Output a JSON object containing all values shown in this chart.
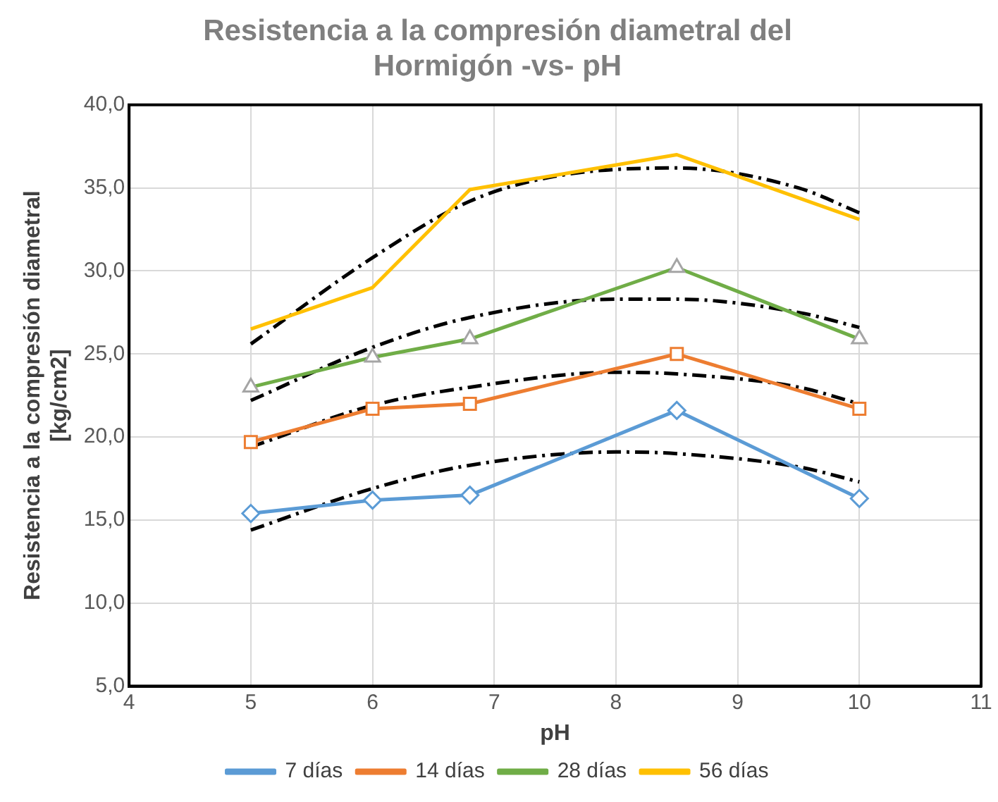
{
  "chart_data": {
    "type": "line",
    "title": "Resistencia a la compresión diametral del Hormigón -vs- pH",
    "xlabel": "pH",
    "ylabel": "Resistencia a la compresión diametral [kg/cm2]",
    "x": [
      5,
      6,
      6.8,
      8.5,
      10
    ],
    "series": [
      {
        "name": "7 días",
        "color": "#5b9bd5",
        "marker": "diamond",
        "values": [
          15.4,
          16.2,
          16.5,
          21.6,
          16.3
        ]
      },
      {
        "name": "14 días",
        "color": "#ed7d31",
        "marker": "square",
        "values": [
          19.7,
          21.7,
          22.0,
          25.0,
          21.7
        ]
      },
      {
        "name": "28 días",
        "color": "#70ad47",
        "marker": "triangle",
        "values": [
          23.0,
          24.8,
          25.9,
          30.2,
          25.9
        ]
      },
      {
        "name": "56 días",
        "color": "#ffc000",
        "marker": "none",
        "values": [
          26.5,
          29.0,
          34.9,
          37.0,
          33.1
        ]
      },
      {
        "type": "line",
        "color": "#000000",
        "line_style": "dashed",
        "marker": "none",
        "x": [
          5,
          6,
          6.8,
          8,
          8.5,
          9.5,
          10
        ],
        "values": [
          14.4,
          16.9,
          18.3,
          19.1,
          19.0,
          18.2,
          17.3
        ]
      },
      {
        "type": "line",
        "color": "#000000",
        "line_style": "dashed",
        "marker": "none",
        "x": [
          5,
          6,
          6.8,
          8,
          8.5,
          9.5,
          10
        ],
        "values": [
          19.4,
          21.9,
          23.0,
          23.9,
          23.8,
          23.0,
          22.0
        ]
      },
      {
        "type": "line",
        "color": "#000000",
        "line_style": "dashed",
        "marker": "none",
        "x": [
          5,
          6,
          6.8,
          8,
          8.5,
          9.5,
          10
        ],
        "values": [
          22.2,
          25.4,
          27.2,
          28.3,
          28.3,
          27.5,
          26.6
        ]
      },
      {
        "type": "line",
        "color": "#000000",
        "line_style": "dashed",
        "marker": "none",
        "x": [
          5,
          6,
          6.8,
          7.5,
          8.5,
          9.5,
          10
        ],
        "values": [
          25.6,
          30.8,
          34.2,
          35.7,
          36.2,
          35.0,
          33.5
        ]
      }
    ],
    "xlim": [
      4,
      11
    ],
    "xticks": [
      4,
      5,
      6,
      7,
      8,
      9,
      10,
      11
    ],
    "ylim": [
      5,
      40
    ],
    "yticks": [
      {
        "value": 5,
        "label": "5,0"
      },
      {
        "value": 10,
        "label": "10,0"
      },
      {
        "value": 15,
        "label": "15,0"
      },
      {
        "value": 20,
        "label": "20,0"
      },
      {
        "value": 25,
        "label": "25,0"
      },
      {
        "value": 30,
        "label": "30,0"
      },
      {
        "value": 35,
        "label": "35,0"
      },
      {
        "value": 40,
        "label": "40,0"
      }
    ],
    "grid": true,
    "legend": "bottom"
  }
}
